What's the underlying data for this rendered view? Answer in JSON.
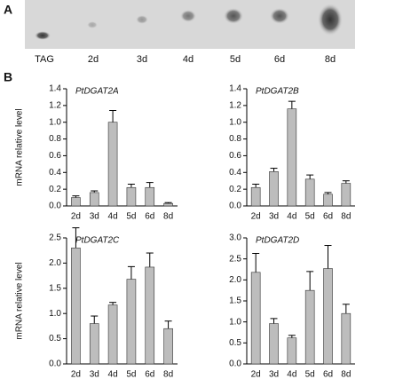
{
  "panel_a": {
    "label": "A",
    "lanes": [
      "TAG",
      "2d",
      "3d",
      "4d",
      "5d",
      "6d",
      "8d"
    ]
  },
  "panel_b": {
    "label": "B"
  },
  "chart_data": [
    {
      "type": "bar",
      "title": "PtDGAT2A",
      "ylabel": "mRNA relative level",
      "categories": [
        "2d",
        "3d",
        "4d",
        "5d",
        "6d",
        "8d"
      ],
      "values": [
        0.1,
        0.16,
        1.0,
        0.22,
        0.22,
        0.03
      ],
      "errors": [
        0.02,
        0.02,
        0.14,
        0.04,
        0.06,
        0.01
      ],
      "color": "#bdbdbd",
      "ylim": [
        0,
        1.4
      ],
      "yticks": [
        {
          "value": 0,
          "label": "0.0"
        },
        0.2,
        0.4,
        0.6,
        0.8,
        {
          "value": 1,
          "label": "1.0"
        },
        1.2,
        1.4
      ]
    },
    {
      "type": "bar",
      "title": "PtDGAT2B",
      "categories": [
        "2d",
        "3d",
        "4d",
        "5d",
        "6d",
        "8d"
      ],
      "values": [
        0.22,
        0.41,
        1.16,
        0.32,
        0.14,
        0.27
      ],
      "errors": [
        0.04,
        0.04,
        0.09,
        0.05,
        0.02,
        0.03
      ],
      "color": "#bdbdbd",
      "ylim": [
        0,
        1.4
      ],
      "yticks": [
        {
          "value": 0,
          "label": "0.0"
        },
        0.2,
        0.4,
        0.6,
        0.8,
        {
          "value": 1,
          "label": "1.0"
        },
        1.2,
        1.4
      ]
    },
    {
      "type": "bar",
      "title": "PtDGAT2C",
      "ylabel": "mRNA relative level",
      "categories": [
        "2d",
        "3d",
        "4d",
        "5d",
        "6d",
        "8d"
      ],
      "values": [
        2.3,
        0.8,
        1.17,
        1.68,
        1.92,
        0.7
      ],
      "errors": [
        0.4,
        0.15,
        0.05,
        0.25,
        0.28,
        0.15
      ],
      "color": "#bdbdbd",
      "ylim": [
        0,
        2.5
      ],
      "yticks": [
        {
          "value": 0,
          "label": "0.0"
        },
        0.5,
        {
          "value": 1,
          "label": "1.0"
        },
        1.5,
        {
          "value": 2,
          "label": "2.0"
        },
        2.5
      ]
    },
    {
      "type": "bar",
      "title": "PtDGAT2D",
      "categories": [
        "2d",
        "3d",
        "4d",
        "5d",
        "6d",
        "8d"
      ],
      "values": [
        2.18,
        0.96,
        0.62,
        1.75,
        2.27,
        1.2
      ],
      "errors": [
        0.45,
        0.12,
        0.06,
        0.45,
        0.55,
        0.22
      ],
      "color": "#bdbdbd",
      "ylim": [
        0,
        3
      ],
      "yticks": [
        {
          "value": 0,
          "label": "0.0"
        },
        0.5,
        {
          "value": 1,
          "label": "1.0"
        },
        1.5,
        {
          "value": 2,
          "label": "2.0"
        },
        2.5,
        {
          "value": 3,
          "label": "3.0"
        }
      ]
    }
  ]
}
